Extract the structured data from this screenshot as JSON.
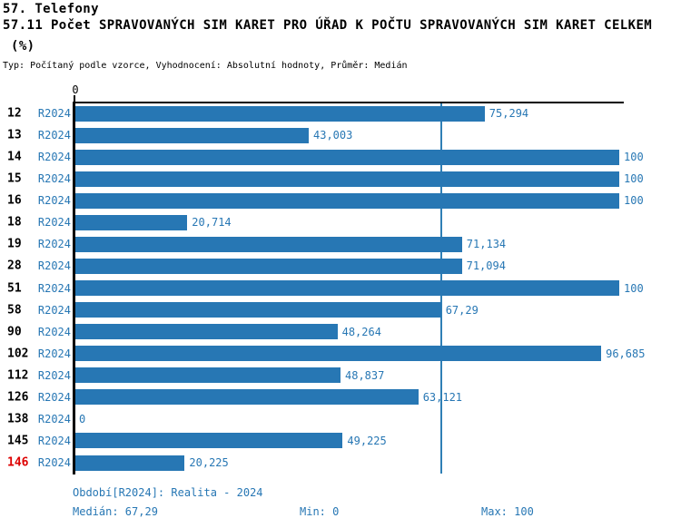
{
  "header": {
    "line1": "57. Telefony",
    "line2": "57.11 Počet SPRAVOVANÝCH SIM KARET PRO ÚŘAD K POČTU SPRAVOVANÝCH SIM KARET CELKEM",
    "line3": "(%)",
    "meta": "Typ: Počítaný podle vzorce, Vyhodnocení: Absolutní hodnoty, Průměr: Medián"
  },
  "chart_data": {
    "type": "bar",
    "orientation": "horizontal",
    "title": "57.11 Počet SPRAVOVANÝCH SIM KARET PRO ÚŘAD K POČTU SPRAVOVANÝCH SIM KARET CELKEM (%)",
    "categories": [
      "12",
      "13",
      "14",
      "15",
      "16",
      "18",
      "19",
      "28",
      "51",
      "58",
      "90",
      "102",
      "112",
      "126",
      "138",
      "145",
      "146"
    ],
    "series": [
      {
        "name": "R2024",
        "values": [
          75.294,
          43.003,
          100,
          100,
          100,
          20.714,
          71.134,
          71.094,
          100,
          67.29,
          48.264,
          96.685,
          48.837,
          63.121,
          0,
          49.225,
          20.225
        ],
        "labels": [
          "75,294",
          "43,003",
          "100",
          "100",
          "100",
          "20,714",
          "71,134",
          "71,094",
          "100",
          "67,29",
          "48,264",
          "96,685",
          "48,837",
          "63,121",
          "0",
          "49,225",
          "20,225"
        ]
      }
    ],
    "xlim": [
      0,
      100
    ],
    "axis_tick_label": "0",
    "grid": false,
    "legend_position": "none",
    "median": 67.29,
    "median_display": "67,29",
    "highlight_category": "146",
    "colors": {
      "bar": "#2777b4",
      "value_text": "#2777b4",
      "period_text": "#2777b4",
      "category_text": "#000000",
      "highlight_category_text": "#dd0000",
      "median_line": "#2f7fb5",
      "axis": "#000000"
    }
  },
  "footer": {
    "period_label": "Období[R2024]: Realita - 2024",
    "median_label": "Medián: 67,29",
    "min_label": "Min: 0",
    "max_label": "Max: 100"
  }
}
